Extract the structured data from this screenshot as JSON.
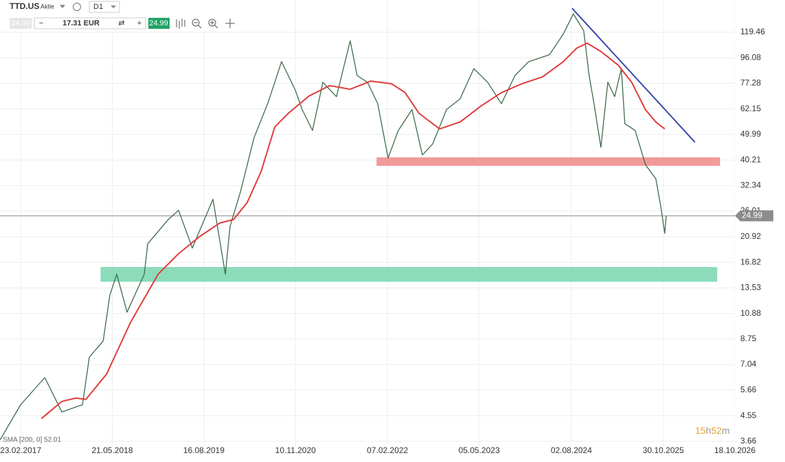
{
  "toolbar": {
    "symbol": "TTD.US",
    "kind": "Aktie",
    "interval": "D1",
    "sell": "24.99",
    "minus": "−",
    "amount": "17.31 EUR",
    "plus": "+",
    "buy": "24.99"
  },
  "chart_data": {
    "type": "line",
    "log": true,
    "grid": true,
    "xlim": [
      "13.11.2016",
      "18.10.2026"
    ],
    "ylim": [
      3.51,
      157.2
    ],
    "xticks": [
      "23.02.2017",
      "21.05.2018",
      "16.08.2019",
      "10.11.2020",
      "07.02.2022",
      "05.05.2023",
      "02.08.2024",
      "30.10.2025",
      "18.10.2026"
    ],
    "yticks": [
      3.66,
      4.55,
      5.66,
      7.04,
      8.75,
      10.88,
      13.53,
      16.82,
      20.92,
      26.01,
      32.34,
      40.21,
      49.99,
      62.15,
      77.28,
      96.08,
      119.46
    ],
    "series": [
      {
        "name": "TTD.US",
        "color": "#3d6b4a",
        "x": [
          "13.11.2016",
          "23.02.2017",
          "22.06.2017",
          "14.09.2017",
          "25.12.2017",
          "28.01.2018",
          "06.04.2018",
          "09.05.2018",
          "12.06.2018",
          "02.08.2018",
          "26.10.2018",
          "12.11.2018",
          "21.02.2019",
          "13.04.2019",
          "20.06.2019",
          "30.09.2019",
          "30.11.2019",
          "23.12.2019",
          "12.02.2020",
          "20.04.2020",
          "27.06.2020",
          "31.07.2020",
          "02.09.2020",
          "09.11.2020",
          "13.12.2020",
          "02.02.2021",
          "25.03.2021",
          "31.05.2021",
          "07.08.2021",
          "10.09.2021",
          "31.10.2021",
          "21.12.2021",
          "10.02.2022",
          "01.04.2022",
          "08.06.2022",
          "29.07.2022",
          "18.09.2022",
          "25.11.2022",
          "31.01.2023",
          "09.04.2023",
          "16.06.2023",
          "23.08.2023",
          "29.10.2023",
          "05.01.2024",
          "16.04.2024",
          "23.06.2024",
          "12.08.2024",
          "02.10.2024",
          "29.10.2024",
          "22.11.2024",
          "26.12.2024",
          "29.01.2025",
          "04.03.2025",
          "06.04.2025",
          "23.04.2025",
          "13.06.2025",
          "03.08.2025",
          "23.09.2025",
          "17.10.2025",
          "06.11.2025",
          "13.11.2025"
        ],
        "values": [
          3.7,
          5.0,
          6.3,
          4.7,
          5.0,
          7.5,
          8.6,
          12.7,
          15.2,
          11.0,
          15.2,
          19.7,
          24.2,
          26.2,
          19.0,
          28.8,
          15.2,
          22.8,
          30.6,
          48.7,
          65.4,
          78,
          93,
          73,
          61.8,
          51.7,
          78,
          69,
          111,
          82.6,
          78,
          65,
          40.9,
          51.7,
          61.8,
          42,
          46.1,
          61.8,
          67.7,
          87.6,
          78,
          65,
          82.6,
          93,
          98.6,
          117.5,
          139.8,
          121,
          82.6,
          65,
          44.8,
          78,
          69,
          87.6,
          54.8,
          51.7,
          38.6,
          34.3,
          27.2,
          21.5,
          24.99
        ]
      },
      {
        "name": "SMA [200, 0]",
        "color": "#e03b3b",
        "x": [
          "05.06.2017",
          "14.09.2017",
          "21.11.2017",
          "11.01.2018",
          "23.04.2018",
          "19.08.2018",
          "02.01.2019",
          "13.04.2019",
          "24.07.2019",
          "02.11.2019",
          "09.01.2020",
          "17.03.2020",
          "24.05.2020",
          "31.07.2020",
          "06.10.2020",
          "16.01.2021",
          "28.04.2021",
          "07.08.2021",
          "17.11.2021",
          "27.02.2022",
          "05.05.2022",
          "12.07.2022",
          "22.10.2022",
          "31.01.2023",
          "13.05.2023",
          "23.08.2023",
          "02.12.2023",
          "13.03.2024",
          "23.06.2024",
          "29.08.2024",
          "19.10.2024",
          "26.12.2024",
          "21.03.2025",
          "27.05.2025",
          "03.08.2025",
          "23.09.2025",
          "06.11.2025"
        ],
        "values": [
          4.44,
          5.14,
          5.29,
          5.23,
          6.49,
          10.07,
          15.2,
          18.1,
          20.9,
          23.5,
          24.2,
          28.0,
          36.4,
          53.3,
          59.9,
          69.4,
          75.8,
          73.5,
          78.8,
          77.0,
          71.4,
          59.9,
          52.4,
          55.6,
          63.6,
          71.4,
          77.0,
          81.7,
          92.9,
          104.4,
          108.8,
          101.4,
          90.3,
          77.9,
          61.7,
          55.6,
          52.4
        ]
      }
    ],
    "last_price": 24.99,
    "indicator_label": "SMA [200, 0] 52.01",
    "countdown": [
      "15",
      "h",
      "52",
      "m"
    ],
    "zones": [
      {
        "color": "#ef8f8f",
        "x": [
          "17.12.2021",
          "04.08.2026"
        ],
        "y": [
          38.4,
          41.0
        ]
      },
      {
        "color": "#7fd8b4",
        "x": [
          "26.03.2018",
          "21.07.2026"
        ],
        "y": [
          14.3,
          16.1
        ]
      }
    ],
    "trendline": {
      "color": "#3949ab",
      "x": [
        "06.08.2024",
        "04.04.2026"
      ],
      "y": [
        146.4,
        46.8
      ]
    }
  }
}
